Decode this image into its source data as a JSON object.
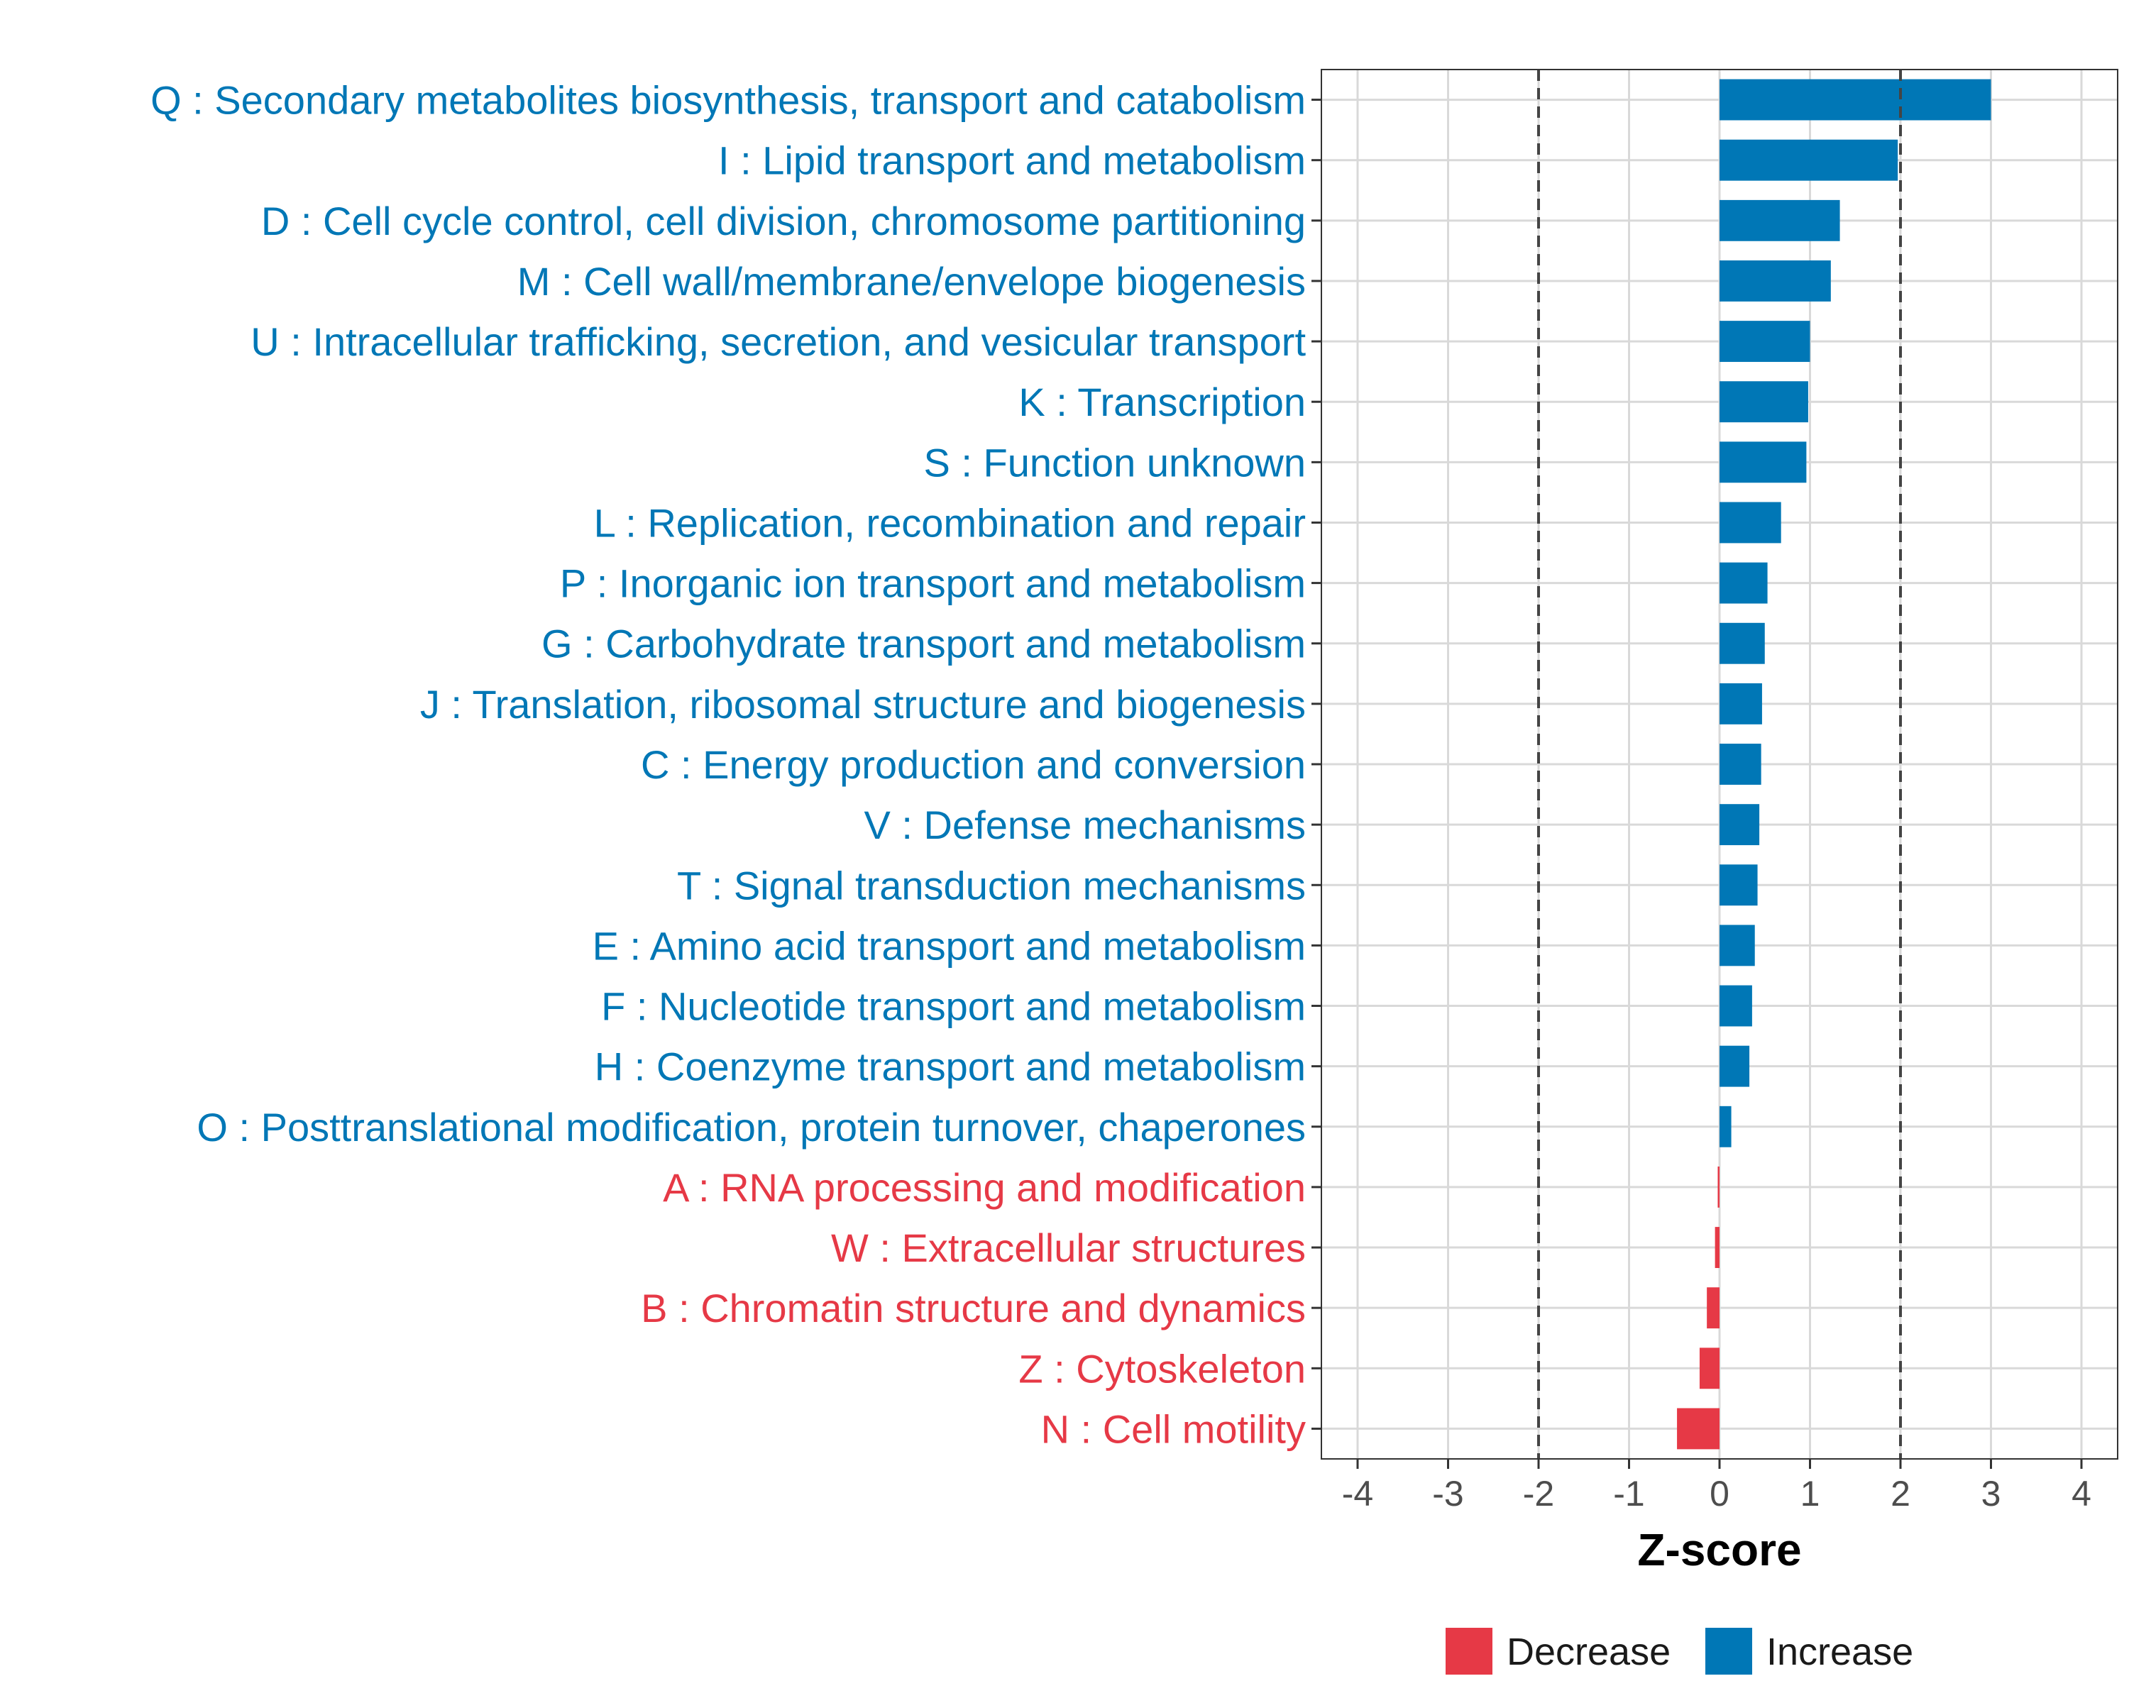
{
  "chart_data": {
    "type": "bar",
    "orientation": "horizontal",
    "title": "",
    "xlabel": "Z-score",
    "ylabel": "",
    "xlim": [
      -4.4,
      4.4
    ],
    "xticks": [
      -4,
      -3,
      -2,
      -1,
      0,
      1,
      2,
      3,
      4
    ],
    "grid": true,
    "reference_lines": [
      -2,
      2
    ],
    "legend_position": "bottom",
    "colors": {
      "Decrease": "#E63946",
      "Increase": "#0077B6"
    },
    "legend": [
      {
        "name": "Decrease",
        "color": "#E63946"
      },
      {
        "name": "Increase",
        "color": "#0077B6"
      }
    ],
    "categories": [
      {
        "label": "Q : Secondary metabolites biosynthesis, transport and catabolism",
        "value": 3.0,
        "group": "Increase"
      },
      {
        "label": "I : Lipid transport and metabolism",
        "value": 1.97,
        "group": "Increase"
      },
      {
        "label": "D : Cell cycle control, cell division, chromosome partitioning",
        "value": 1.33,
        "group": "Increase"
      },
      {
        "label": "M : Cell wall/membrane/envelope biogenesis",
        "value": 1.23,
        "group": "Increase"
      },
      {
        "label": "U : Intracellular trafficking, secretion, and vesicular transport",
        "value": 1.0,
        "group": "Increase"
      },
      {
        "label": "K : Transcription",
        "value": 0.98,
        "group": "Increase"
      },
      {
        "label": "S : Function unknown",
        "value": 0.96,
        "group": "Increase"
      },
      {
        "label": "L : Replication, recombination and repair",
        "value": 0.68,
        "group": "Increase"
      },
      {
        "label": "P : Inorganic ion transport and metabolism",
        "value": 0.53,
        "group": "Increase"
      },
      {
        "label": "G : Carbohydrate transport and metabolism",
        "value": 0.5,
        "group": "Increase"
      },
      {
        "label": "J : Translation, ribosomal structure and biogenesis",
        "value": 0.47,
        "group": "Increase"
      },
      {
        "label": "C : Energy production and conversion",
        "value": 0.46,
        "group": "Increase"
      },
      {
        "label": "V : Defense mechanisms",
        "value": 0.44,
        "group": "Increase"
      },
      {
        "label": "T : Signal transduction mechanisms",
        "value": 0.42,
        "group": "Increase"
      },
      {
        "label": "E : Amino acid transport and metabolism",
        "value": 0.39,
        "group": "Increase"
      },
      {
        "label": "F : Nucleotide transport and metabolism",
        "value": 0.36,
        "group": "Increase"
      },
      {
        "label": "H : Coenzyme transport and metabolism",
        "value": 0.33,
        "group": "Increase"
      },
      {
        "label": "O : Posttranslational modification, protein turnover, chaperones",
        "value": 0.13,
        "group": "Increase"
      },
      {
        "label": "A : RNA processing and modification",
        "value": -0.02,
        "group": "Decrease"
      },
      {
        "label": "W : Extracellular structures",
        "value": -0.05,
        "group": "Decrease"
      },
      {
        "label": "B : Chromatin structure and dynamics",
        "value": -0.14,
        "group": "Decrease"
      },
      {
        "label": "Z : Cytoskeleton",
        "value": -0.22,
        "group": "Decrease"
      },
      {
        "label": "N : Cell motility",
        "value": -0.47,
        "group": "Decrease"
      }
    ]
  }
}
